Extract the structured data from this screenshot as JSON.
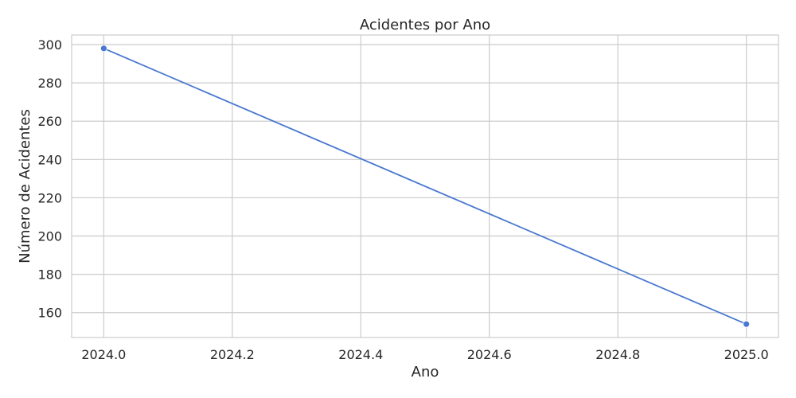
{
  "chart_data": {
    "type": "line",
    "title": "Acidentes por Ano",
    "xlabel": "Ano",
    "ylabel": "Número de Acidentes",
    "x": [
      2024.0,
      2025.0
    ],
    "series": [
      {
        "values": [
          298,
          154
        ],
        "color": "#4878d0"
      }
    ],
    "xlim": [
      2023.95,
      2025.05
    ],
    "ylim": [
      147,
      305
    ],
    "xticks": [
      2024.0,
      2024.2,
      2024.4,
      2024.6,
      2024.8,
      2025.0
    ],
    "xtick_labels": [
      "2024.0",
      "2024.2",
      "2024.4",
      "2024.6",
      "2024.8",
      "2025.0"
    ],
    "yticks": [
      160,
      180,
      200,
      220,
      240,
      260,
      280,
      300
    ],
    "ytick_labels": [
      "160",
      "180",
      "200",
      "220",
      "240",
      "260",
      "280",
      "300"
    ],
    "grid": true,
    "markers": true
  }
}
